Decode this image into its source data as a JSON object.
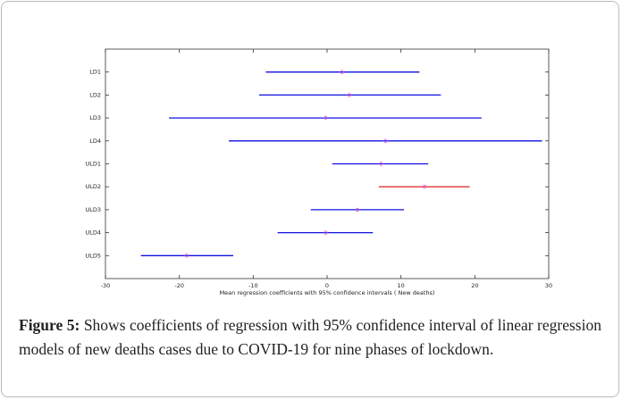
{
  "chart_data": {
    "type": "interval",
    "categories": [
      "LD1",
      "LD2",
      "LD3",
      "LD4",
      "ULD1",
      "ULD2",
      "ULD3",
      "ULD4",
      "ULD5"
    ],
    "values": [
      2.0,
      3.0,
      -0.2,
      7.9,
      7.3,
      13.2,
      4.1,
      -0.2,
      -19.0
    ],
    "lower": [
      -8.3,
      -9.2,
      -21.4,
      -13.3,
      0.7,
      7.0,
      -2.2,
      -6.7,
      -25.2
    ],
    "upper": [
      12.5,
      15.4,
      20.9,
      29.1,
      13.7,
      19.3,
      10.4,
      6.2,
      -12.7
    ],
    "colors": [
      "#1010e0",
      "#1010e0",
      "#1010e0",
      "#1010e0",
      "#1010e0",
      "#e03030",
      "#1010e0",
      "#1010e0",
      "#1010e0"
    ],
    "marker_color": "#e060e0",
    "xlim": [
      -30,
      30
    ],
    "xticks": [
      -30,
      -20,
      -10,
      0,
      10,
      20,
      30
    ],
    "xlabel": "Mean regression coefficients with 95% confidence intervals ( New deaths)"
  },
  "caption": {
    "label": "Figure 5:",
    "text": " Shows coefficients of regression with 95% confidence interval of linear regression models of new deaths cases due to COVID-19 for nine phases of lockdown."
  }
}
